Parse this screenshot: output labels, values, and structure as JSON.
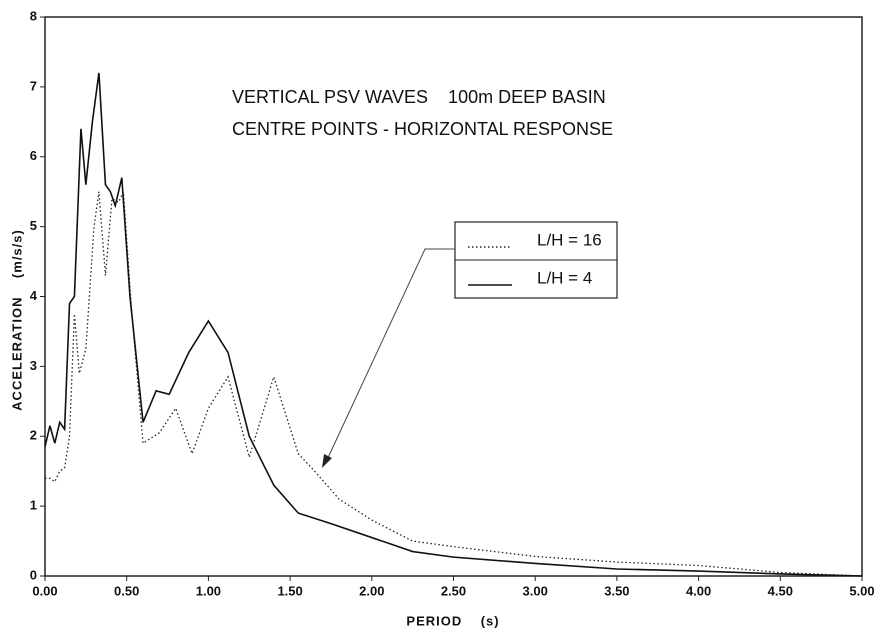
{
  "chart_data": {
    "type": "line",
    "title": "VERTICAL PSV WAVES    100m DEEP BASIN",
    "subtitle": "CENTRE POINTS - HORIZONTAL RESPONSE",
    "x_label": "PERIOD    (s)",
    "y_label": "ACCELERATION    (m/s/s)",
    "xlim": [
      0,
      5
    ],
    "ylim": [
      0,
      8
    ],
    "xticks": [
      {
        "value": 0,
        "label": "0.00"
      },
      {
        "value": 0.5,
        "label": "0.50"
      },
      {
        "value": 1,
        "label": "1.00"
      },
      {
        "value": 1.5,
        "label": "1.50"
      },
      {
        "value": 2,
        "label": "2.00"
      },
      {
        "value": 2.5,
        "label": "2.50"
      },
      {
        "value": 3,
        "label": "3.00"
      },
      {
        "value": 3.5,
        "label": "3.50"
      },
      {
        "value": 4,
        "label": "4.00"
      },
      {
        "value": 4.5,
        "label": "4.50"
      },
      {
        "value": 5,
        "label": "5.00"
      }
    ],
    "yticks": [
      0,
      1,
      2,
      3,
      4,
      5,
      6,
      7,
      8
    ],
    "series": [
      {
        "name": "L/H = 16",
        "color": "#222222",
        "style": "dotted",
        "x": [
          0,
          0.03,
          0.06,
          0.09,
          0.12,
          0.15,
          0.18,
          0.21,
          0.25,
          0.3,
          0.33,
          0.37,
          0.41,
          0.45,
          0.48,
          0.53,
          0.6,
          0.7,
          0.8,
          0.9,
          1,
          1.12,
          1.25,
          1.4,
          1.55,
          1.65,
          1.8,
          2,
          2.25,
          2.5,
          3,
          3.5,
          4,
          4.5,
          5
        ],
        "values": [
          1.4,
          1.4,
          1.35,
          1.5,
          1.55,
          2.0,
          3.75,
          2.9,
          3.25,
          5.0,
          5.5,
          4.3,
          5.4,
          5.35,
          5.5,
          3.8,
          1.9,
          2.05,
          2.4,
          1.75,
          2.4,
          2.85,
          1.7,
          2.85,
          1.75,
          1.5,
          1.1,
          0.8,
          0.5,
          0.42,
          0.28,
          0.2,
          0.15,
          0.05,
          0
        ]
      },
      {
        "name": "L/H = 4",
        "color": "#111111",
        "style": "solid",
        "x": [
          0,
          0.03,
          0.06,
          0.09,
          0.12,
          0.15,
          0.18,
          0.22,
          0.25,
          0.29,
          0.33,
          0.37,
          0.4,
          0.43,
          0.47,
          0.52,
          0.6,
          0.68,
          0.76,
          0.88,
          1,
          1.12,
          1.25,
          1.4,
          1.55,
          1.75,
          2,
          2.25,
          2.5,
          3,
          3.5,
          4,
          4.5,
          5
        ],
        "values": [
          1.85,
          2.15,
          1.9,
          2.2,
          2.1,
          3.9,
          4.0,
          6.4,
          5.6,
          6.5,
          7.2,
          5.6,
          5.5,
          5.3,
          5.7,
          4.0,
          2.2,
          2.65,
          2.6,
          3.2,
          3.65,
          3.2,
          2.0,
          1.3,
          0.9,
          0.75,
          0.55,
          0.35,
          0.27,
          0.18,
          0.1,
          0.07,
          0.03,
          0
        ]
      }
    ]
  }
}
